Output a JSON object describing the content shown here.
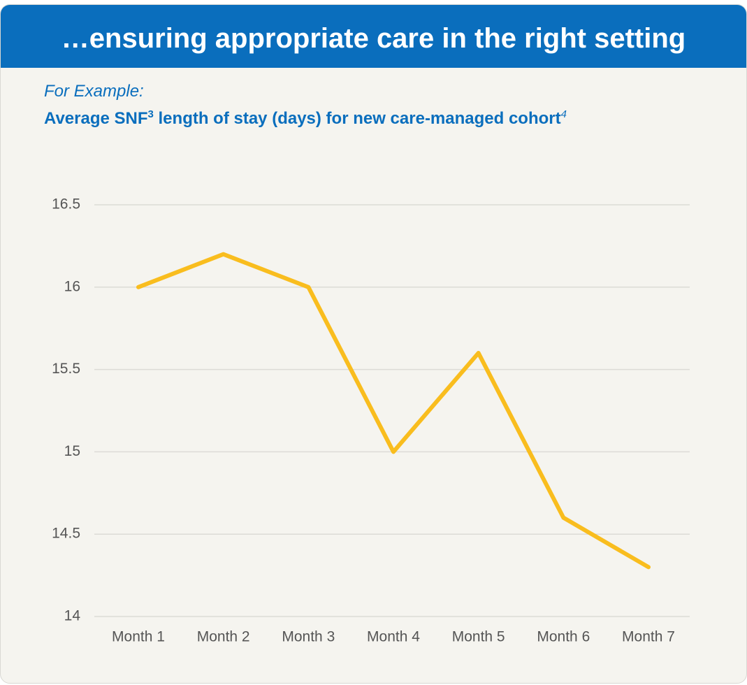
{
  "chart_data": {
    "type": "line",
    "header": "…ensuring appropriate care in the right setting",
    "subtitle": "For Example:",
    "title_parts": [
      "Average SNF",
      "3",
      "length of stay (days) for new care-managed cohort",
      "4"
    ],
    "categories": [
      "Month 1",
      "Month 2",
      "Month 3",
      "Month 4",
      "Month 5",
      "Month 6",
      "Month 7"
    ],
    "values": [
      16,
      16.2,
      16,
      15,
      15.6,
      14.6,
      14.3
    ],
    "color": "#f9bd1e",
    "ylim": [
      14,
      16.5
    ],
    "yticks": [
      14,
      14.5,
      15,
      15.5,
      16,
      16.5
    ],
    "grid": true
  }
}
